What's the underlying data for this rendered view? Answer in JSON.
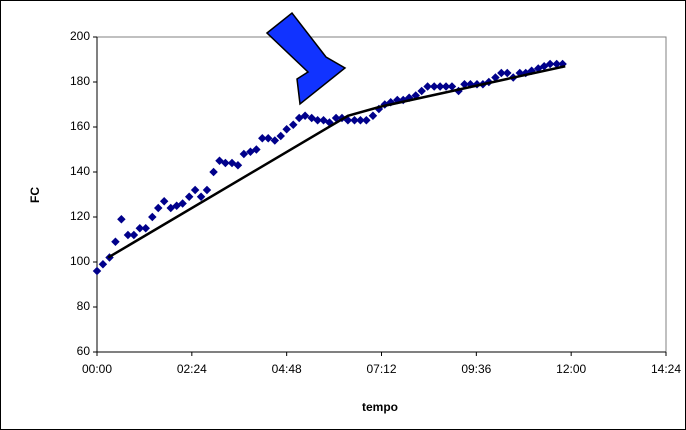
{
  "chart_data": {
    "type": "scatter",
    "x_label": "tempo",
    "y_label": "FC",
    "x": [
      0,
      9,
      19,
      28,
      37,
      47,
      56,
      65,
      74,
      84,
      93,
      102,
      112,
      121,
      130,
      140,
      149,
      158,
      167,
      177,
      186,
      195,
      205,
      214,
      223,
      233,
      242,
      251,
      260,
      270,
      279,
      288,
      298,
      307,
      316,
      326,
      335,
      344,
      353,
      363,
      372,
      381,
      391,
      400,
      409,
      419,
      428,
      437,
      446,
      456,
      465,
      474,
      484,
      493,
      502,
      512,
      521,
      530,
      539,
      549,
      558,
      567,
      577,
      586,
      595,
      605,
      614,
      623,
      632,
      642,
      651,
      660,
      670,
      679,
      688,
      698,
      707
    ],
    "series": [
      {
        "color": "#00008b",
        "values": [
          96,
          99,
          102,
          109,
          119,
          112,
          112,
          115,
          115,
          120,
          124,
          127,
          124,
          125,
          126,
          129,
          132,
          129,
          132,
          140,
          145,
          144,
          144,
          143,
          148,
          149,
          150,
          155,
          155,
          154,
          156,
          159,
          161,
          164,
          165,
          164,
          163,
          163,
          162,
          164,
          164,
          163,
          163,
          163,
          163,
          165,
          168,
          170,
          171,
          172,
          172,
          173,
          174,
          176,
          178,
          178,
          178,
          178,
          178,
          176,
          179,
          179,
          179,
          179,
          180,
          182,
          184,
          184,
          182,
          184,
          184,
          185,
          186,
          187,
          188,
          188,
          188
        ]
      },
      {
        "type": "line",
        "color": "#000000",
        "x": [
          17,
          381,
          430,
          711
        ],
        "values": [
          102,
          165,
          169,
          187
        ]
      }
    ],
    "xlim": [
      0,
      864
    ],
    "xticks": [
      {
        "value": 0,
        "label": "00:00"
      },
      {
        "value": 144,
        "label": "02:24"
      },
      {
        "value": 288,
        "label": "04:48"
      },
      {
        "value": 432,
        "label": "07:12"
      },
      {
        "value": 576,
        "label": "09:36"
      },
      {
        "value": 720,
        "label": "12:00"
      },
      {
        "value": 864,
        "label": "14:24"
      }
    ],
    "ylim": [
      60,
      200
    ],
    "yticks": [
      60,
      80,
      100,
      120,
      140,
      160,
      180,
      200
    ]
  }
}
